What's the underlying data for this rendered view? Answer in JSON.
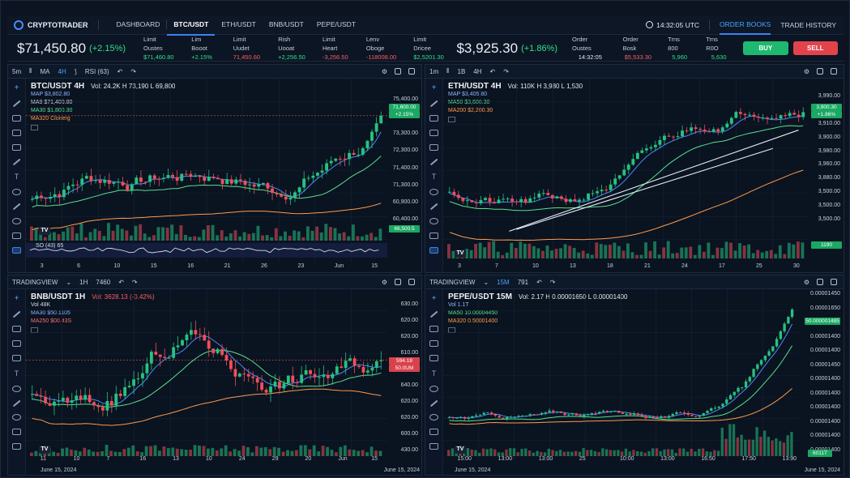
{
  "app": {
    "name": "CRYPTOTRADER"
  },
  "nav": [
    "DASHBOARD",
    "BTC/USDT",
    "ETH/USDT",
    "BNB/USDT",
    "PEPE/USDT"
  ],
  "top_right": {
    "time": "14:32:05 UTC",
    "tab_order": "ORDER BOOKS",
    "tab_history": "TRADE HISTORY"
  },
  "ticker_left": {
    "price": "$71,450.80",
    "change": "(+2.15%)",
    "stats": [
      {
        "label": "Limit Oustes",
        "value": "$71,460.80"
      },
      {
        "label": "Lim Booot",
        "value": "+2.15%"
      },
      {
        "label": "Limit Uudet",
        "value": "71,450.60"
      },
      {
        "label": "Rish Uooat",
        "value": "+2,256.50"
      },
      {
        "label": "Limit Heart",
        "value": "-3,256.50"
      },
      {
        "label": "Lenv Oboge",
        "value": "-118008.00"
      },
      {
        "label": "Limit Dricee",
        "value": "$2,5201.30"
      }
    ]
  },
  "ticker_right": {
    "price": "$3,925.30",
    "change": "(+1.86%)",
    "stats": [
      {
        "label": "Order Oustes",
        "value": "14:32:05"
      },
      {
        "label": "Order Bosk",
        "value": "$5,533.30"
      },
      {
        "label": "Trns 800",
        "value": "5,960"
      },
      {
        "label": "Trns R0O",
        "value": "5,630"
      }
    ],
    "buy": "BUY",
    "sell": "SELL"
  },
  "colors": {
    "up": "#26c281",
    "down": "#ef4f5a",
    "accent": "#3b82f6",
    "buy": "#1fb86f",
    "sell": "#e2434b"
  },
  "panels": {
    "btc": {
      "toolbar": [
        "5m",
        "MA",
        "4H",
        "RSI (63)"
      ],
      "title": "BTC/USDT 4H",
      "stats": "Vol: 24.2K  H 73,190  L 69,800",
      "ma": [
        "MAP $3,802.80",
        "MA9 $71,400.80",
        "MA30 $1,800.30",
        "MA320 Clonerg"
      ],
      "axis": [
        "75,400.00",
        "73,400.00",
        "73,300.00",
        "72,300.00",
        "71,400.00",
        "71,300.00",
        "60,900.00",
        "60,400.00"
      ],
      "price_tag": "71,600.00",
      "price_tag2": "+2.15%",
      "vol_tag": "66,500.5",
      "rsi_label": "SO (43)  65",
      "xaxis": [
        "3",
        "6",
        "10",
        "15",
        "16",
        "21",
        "26",
        "23",
        "Jun",
        "15"
      ]
    },
    "eth": {
      "toolbar": [
        "1m",
        "1B",
        "4H"
      ],
      "title": "ETH/USDT 4H",
      "stats": "Vol: 110K  H 3,980  L 1,530",
      "ma": [
        "MAP $3,405.80",
        "MA50 $3,600.30",
        "MA200 $2,200.30"
      ],
      "axis": [
        "3,990.00",
        "3,930.00",
        "3,910.00",
        "3,900.00",
        "3,980.00",
        "3,960.00",
        "3,880.00",
        "3,500.00",
        "3,500.00",
        "3,500.00"
      ],
      "price_tag": "3,900.30",
      "price_tag2": "+1.86%",
      "vol_tag": "1190",
      "xaxis": [
        "3",
        "7",
        "10",
        "13",
        "18",
        "21",
        "24",
        "17",
        "25",
        "30"
      ]
    },
    "bnb": {
      "toolbar": [
        "TRADINGVIEW",
        "1H",
        "7460",
        "B"
      ],
      "title": "BNB/USDT 1H",
      "stats": "Vol: 3628.13 (-0.42%)",
      "ma": [
        "Vol 48K",
        "MA30 $50.1105",
        "MA250 $00.43S"
      ],
      "axis": [
        "630.00",
        "620.00",
        "620.00",
        "610.00",
        "600.00",
        "640.00",
        "620.00",
        "620.00",
        "600.00",
        "430.00"
      ],
      "price_tag": "594.18",
      "price_tag2": "50.0UM",
      "xaxis": [
        "11",
        "10",
        "7",
        "16",
        "13",
        "10",
        "24",
        "29",
        "20",
        "Jun",
        "15"
      ],
      "date": "June 15, 2024",
      "date_r": "June 15, 2024"
    },
    "pepe": {
      "toolbar": [
        "TRADINGVIEW",
        "15M",
        "791"
      ],
      "title": "PEPE/USDT 15M",
      "stats": "Vol: 2.17  H 0.00001650  L 0.00001400",
      "ma": [
        "Vol 1.1T",
        "MA50 10.00004450",
        "MA320 0.50001400"
      ],
      "axis": [
        "0.00001450",
        "0.00001650",
        "0.00001650",
        "0.00001400",
        "0.00001400",
        "0.00001450",
        "0.00001400",
        "0.00001400",
        "0.00001400",
        "0.00001400",
        "0.00001400",
        "0.00001400"
      ],
      "price_tag": "50.000001485",
      "vol_tag": "6011T",
      "xaxis": [
        "15:00",
        "13:00",
        "13:00",
        "25",
        "10:00",
        "13:00",
        "16:50",
        "17:50",
        "13:90"
      ],
      "date": "June 15, 2024",
      "date_r": "June 15, 2024"
    }
  }
}
